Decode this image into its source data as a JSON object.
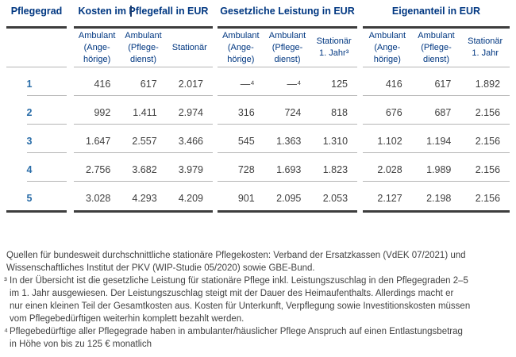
{
  "accent_colors": {
    "navy_header": "#003781",
    "grade_blue": "#2a6da8",
    "text_gray": "#414141",
    "rule_dark": "#3d3d3d",
    "rule_light": "#b5b5b5"
  },
  "table": {
    "row_header_label": "Pflegegrad",
    "groups": [
      {
        "label": "Kosten im Pflegefall in EUR",
        "columns": [
          [
            "Ambulant",
            "(Ange-",
            "hörige)"
          ],
          [
            "Ambulant",
            "(Pflege-",
            "dienst)"
          ],
          [
            "Stationär"
          ]
        ]
      },
      {
        "label": "Gesetzliche Leistung in EUR",
        "columns": [
          [
            "Ambulant",
            "(Ange-",
            "hörige)"
          ],
          [
            "Ambulant",
            "(Pflege-",
            "dienst)"
          ],
          [
            "Stationär",
            "1. Jahr³"
          ]
        ]
      },
      {
        "label": "Eigenanteil in EUR",
        "columns": [
          [
            "Ambulant",
            "(Ange-",
            "hörige)"
          ],
          [
            "Ambulant",
            "(Pflege-",
            "dienst)"
          ],
          [
            "Stationär",
            "1. Jahr"
          ]
        ]
      }
    ],
    "rows": [
      {
        "grade": "1",
        "values": [
          [
            "416",
            "617",
            "2.017"
          ],
          [
            "—⁴",
            "—⁴",
            "125"
          ],
          [
            "416",
            "617",
            "1.892"
          ]
        ]
      },
      {
        "grade": "2",
        "values": [
          [
            "992",
            "1.411",
            "2.974"
          ],
          [
            "316",
            "724",
            "818"
          ],
          [
            "676",
            "687",
            "2.156"
          ]
        ]
      },
      {
        "grade": "3",
        "values": [
          [
            "1.647",
            "2.557",
            "3.466"
          ],
          [
            "545",
            "1.363",
            "1.310"
          ],
          [
            "1.102",
            "1.194",
            "2.156"
          ]
        ]
      },
      {
        "grade": "4",
        "values": [
          [
            "2.756",
            "3.682",
            "3.979"
          ],
          [
            "728",
            "1.693",
            "1.823"
          ],
          [
            "2.028",
            "1.989",
            "2.156"
          ]
        ]
      },
      {
        "grade": "5",
        "values": [
          [
            "3.028",
            "4.293",
            "4.209"
          ],
          [
            "901",
            "2.095",
            "2.053"
          ],
          [
            "2.127",
            "2.198",
            "2.156"
          ]
        ]
      }
    ]
  },
  "footnotes": {
    "source_lines": [
      "Quellen für bundesweit durchschnittliche stationäre Pflegekosten: Verband der Ersatzkassen (VdEK 07/2021) und",
      "Wissenschaftliches Institut der PKV (WIP-Studie 05/2020) sowie GBE-Bund."
    ],
    "note3": {
      "marker": "³",
      "lines": [
        "In der Übersicht ist die gesetzliche Leistung für stationäre Pflege inkl. Leistungszuschlag in den Pflegegraden 2–5",
        "im 1. Jahr ausgewiesen. Der Leistungszuschlag steigt mit der Dauer des Heimaufenthalts. Allerdings macht er",
        "nur einen kleinen Teil der Gesamtkosten aus. Kosten für Unterkunft, Verpflegung sowie Investitionskosten müssen",
        "vom Pflegebedürftigen weiterhin komplett bezahlt werden."
      ]
    },
    "note4": {
      "marker": "⁴",
      "lines": [
        "Pflegebedürftige aller Pflegegrade haben in ambulanter/häuslicher Pflege Anspruch auf einen Entlastungsbetrag",
        "in Höhe von bis zu 125 € monatlich"
      ]
    }
  }
}
